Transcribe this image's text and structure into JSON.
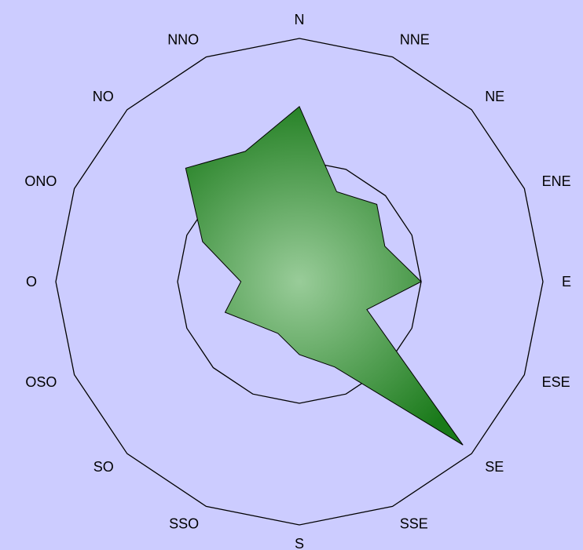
{
  "chart_data": {
    "type": "radar",
    "categories": [
      "N",
      "NNE",
      "NE",
      "ENE",
      "E",
      "ESE",
      "SE",
      "SSE",
      "S",
      "SSO",
      "SO",
      "OSO",
      "O",
      "ONO",
      "NO",
      "NNO"
    ],
    "series": [
      {
        "values": [
          0.72,
          0.4,
          0.45,
          0.38,
          0.5,
          0.3,
          0.95,
          0.38,
          0.3,
          0.23,
          0.25,
          0.33,
          0.24,
          0.43,
          0.66,
          0.58
        ]
      }
    ],
    "ylim": [
      0,
      1
    ],
    "ring_levels": [
      0.5,
      1.0
    ],
    "grid": true,
    "fill_colors": {
      "dark": "#1a7a1a",
      "light": "#99cc99"
    },
    "background": "#ccccff"
  }
}
